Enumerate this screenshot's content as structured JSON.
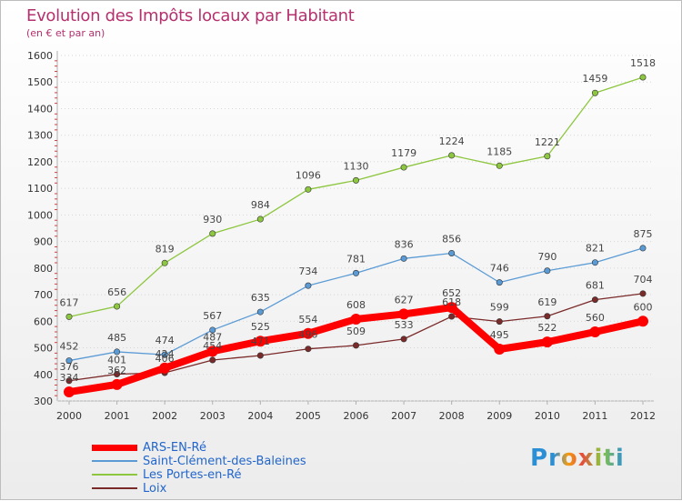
{
  "chart_data": {
    "type": "line",
    "title": "Evolution des Impôts locaux par Habitant",
    "subtitle": "(en € et par an)",
    "x": [
      "2000",
      "2001",
      "2002",
      "2003",
      "2004",
      "2005",
      "2006",
      "2007",
      "2008",
      "2009",
      "2010",
      "2011",
      "2012"
    ],
    "ylim": [
      300,
      1600
    ],
    "yticks": [
      300,
      400,
      500,
      600,
      700,
      800,
      900,
      1000,
      1100,
      1200,
      1300,
      1400,
      1500,
      1600
    ],
    "grid": "horizontal dotted",
    "legend_placement": "bottom-left",
    "series": [
      {
        "name": "Les Portes-en-Ré",
        "color": "#8dc63f",
        "values": [
          617,
          656,
          819,
          930,
          984,
          1096,
          1130,
          1179,
          1224,
          1185,
          1221,
          1459,
          1518
        ]
      },
      {
        "name": "Saint-Clément-des-Baleines",
        "color": "#5b9bd5",
        "values": [
          452,
          485,
          474,
          567,
          635,
          734,
          781,
          836,
          856,
          746,
          790,
          821,
          875
        ]
      },
      {
        "name": "Loix",
        "color": "#7b2a2a",
        "values": [
          376,
          401,
          406,
          454,
          471,
          496,
          509,
          533,
          618,
          599,
          619,
          681,
          704
        ]
      },
      {
        "name": "ARS-EN-Ré",
        "color": "#ff0000",
        "values": [
          334,
          362,
          424,
          487,
          525,
          554,
          608,
          627,
          652,
          495,
          522,
          560,
          600
        ]
      }
    ]
  },
  "legend": {
    "items": [
      {
        "label": "ARS-EN-Ré",
        "color": "#ff0000"
      },
      {
        "label": "Saint-Clément-des-Baleines",
        "color": "#5b9bd5"
      },
      {
        "label": "Les Portes-en-Ré",
        "color": "#8dc63f"
      },
      {
        "label": "Loix",
        "color": "#7b2a2a"
      }
    ]
  },
  "brand": {
    "text": "Proxiti"
  }
}
